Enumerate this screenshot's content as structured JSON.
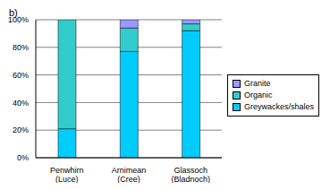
{
  "chart_data": {
    "type": "bar",
    "title": "b)",
    "categories": [
      "Penwhirn (Luce)",
      "Arnimean (Cree)",
      "Glassoch (Bladnoch)"
    ],
    "series": [
      {
        "name": "Greywackes/shales",
        "color": "#00ccff",
        "values": [
          21,
          77,
          92
        ]
      },
      {
        "name": "Organic",
        "color": "#33cccc",
        "values": [
          79,
          17,
          5
        ]
      },
      {
        "name": "Granite",
        "color": "#9999ff",
        "values": [
          0,
          6,
          3
        ]
      }
    ],
    "stacked": true,
    "ylim": [
      0,
      100
    ],
    "yticks": [
      {
        "value": 0,
        "label": "0%"
      },
      {
        "value": 20,
        "label": "20%"
      },
      {
        "value": 40,
        "label": "40%"
      },
      {
        "value": 60,
        "label": "60%"
      },
      {
        "value": 80,
        "label": "80%"
      },
      {
        "value": 100,
        "label": "100%"
      }
    ],
    "grid": true,
    "legend": "right"
  }
}
